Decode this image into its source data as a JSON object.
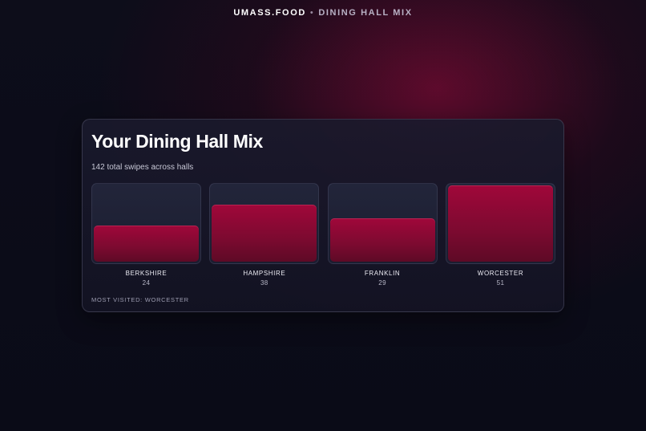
{
  "header": {
    "brand": "UMASS.FOOD",
    "separator": "•",
    "section": "DINING HALL MIX"
  },
  "card": {
    "title": "Your Dining Hall Mix",
    "subtitle": "142 total swipes across halls",
    "footer": "MOST VISITED: WORCESTER"
  },
  "colors": {
    "accent": "#a0073a",
    "background": "#0b0c18"
  },
  "chart_data": {
    "type": "bar",
    "categories": [
      "BERKSHIRE",
      "HAMPSHIRE",
      "FRANKLIN",
      "WORCESTER"
    ],
    "values": [
      24,
      38,
      29,
      51
    ],
    "ylim": [
      0,
      51
    ],
    "value_labels": [
      "24",
      "38",
      "29",
      "51"
    ]
  }
}
